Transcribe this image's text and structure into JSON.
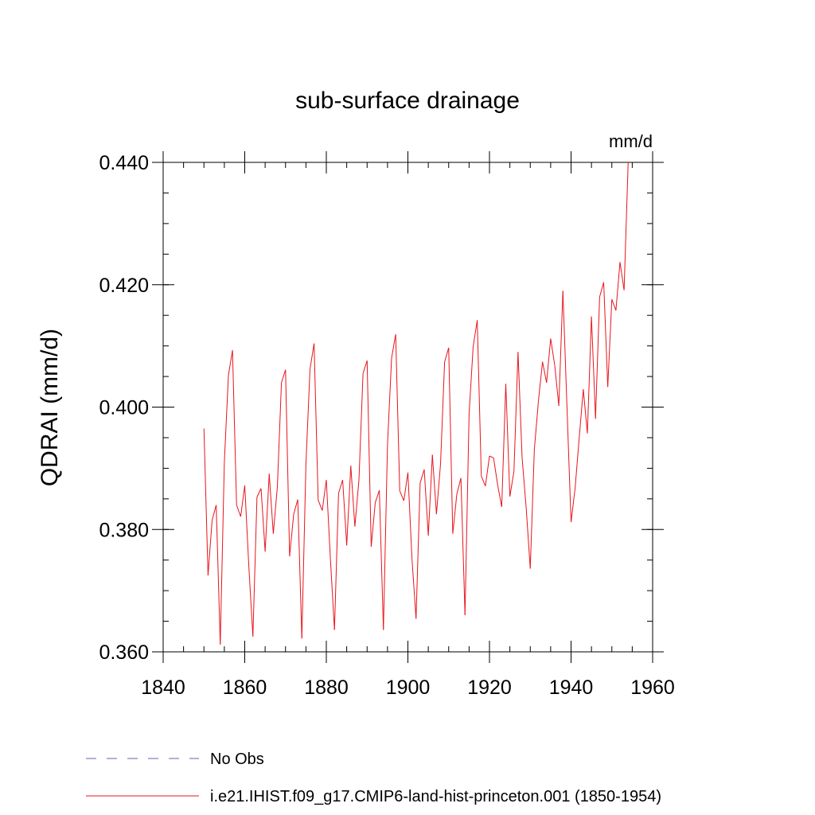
{
  "chart_data": {
    "type": "line",
    "title": "sub-surface drainage",
    "units_label": "mm/d",
    "ylabel": "QDRAI  (mm/d)",
    "xlabel": "",
    "xlim": [
      1840,
      1960
    ],
    "ylim": [
      0.36,
      0.44
    ],
    "x_ticks": [
      1840,
      1860,
      1880,
      1900,
      1920,
      1940,
      1960
    ],
    "x_tick_labels": [
      "1840",
      "1860",
      "1880",
      "1900",
      "1920",
      "1940",
      "1960"
    ],
    "y_ticks": [
      0.36,
      0.38,
      0.4,
      0.42,
      0.44
    ],
    "y_tick_labels": [
      "0.360",
      "0.380",
      "0.400",
      "0.420",
      "0.440"
    ],
    "y_minor_step": 0.005,
    "x_minor_step": 5,
    "grid": false,
    "legend_position": "bottom-left",
    "legend": [
      {
        "label": "No Obs",
        "color": "#6b5fb5",
        "dash": "dashed"
      },
      {
        "label": "i.e21.IHIST.f09_g17.CMIP6-land-hist-princeton.001 (1850-1954)",
        "color": "#e8141c",
        "dash": "solid"
      }
    ],
    "series": [
      {
        "name": "i.e21.IHIST.f09_g17.CMIP6-land-hist-princeton.001 (1850-1954)",
        "color": "#e8141c",
        "x": [
          1850,
          1851,
          1852,
          1853,
          1854,
          1855,
          1856,
          1857,
          1858,
          1859,
          1860,
          1861,
          1862,
          1863,
          1864,
          1865,
          1866,
          1867,
          1868,
          1869,
          1870,
          1871,
          1872,
          1873,
          1874,
          1875,
          1876,
          1877,
          1878,
          1879,
          1880,
          1881,
          1882,
          1883,
          1884,
          1885,
          1886,
          1887,
          1888,
          1889,
          1890,
          1891,
          1892,
          1893,
          1894,
          1895,
          1896,
          1897,
          1898,
          1899,
          1900,
          1901,
          1902,
          1903,
          1904,
          1905,
          1906,
          1907,
          1908,
          1909,
          1910,
          1911,
          1912,
          1913,
          1914,
          1915,
          1916,
          1917,
          1918,
          1919,
          1920,
          1921,
          1922,
          1923,
          1924,
          1925,
          1926,
          1927,
          1928,
          1929,
          1930,
          1931,
          1932,
          1933,
          1934,
          1935,
          1936,
          1937,
          1938,
          1939,
          1940,
          1941,
          1942,
          1943,
          1944,
          1945,
          1946,
          1947,
          1948,
          1949,
          1950,
          1951,
          1952,
          1953,
          1954
        ],
        "y": [
          0.3965,
          0.3725,
          0.3815,
          0.384,
          0.3612,
          0.391,
          0.4052,
          0.4093,
          0.384,
          0.3821,
          0.3872,
          0.374,
          0.3625,
          0.3853,
          0.3867,
          0.3764,
          0.3891,
          0.3793,
          0.387,
          0.404,
          0.4061,
          0.3756,
          0.3825,
          0.3849,
          0.3622,
          0.3907,
          0.4062,
          0.4104,
          0.3848,
          0.3831,
          0.3881,
          0.3752,
          0.3636,
          0.3859,
          0.3881,
          0.3774,
          0.3904,
          0.3805,
          0.3881,
          0.4055,
          0.4076,
          0.3772,
          0.3844,
          0.3864,
          0.3636,
          0.3939,
          0.408,
          0.4119,
          0.3863,
          0.3847,
          0.3893,
          0.3752,
          0.3654,
          0.3876,
          0.3898,
          0.379,
          0.3922,
          0.3825,
          0.3907,
          0.4074,
          0.4097,
          0.3793,
          0.3858,
          0.3884,
          0.366,
          0.3989,
          0.4099,
          0.4142,
          0.3887,
          0.3871,
          0.392,
          0.3917,
          0.3873,
          0.3837,
          0.4038,
          0.3854,
          0.3895,
          0.409,
          0.3917,
          0.3835,
          0.3736,
          0.3931,
          0.401,
          0.4074,
          0.404,
          0.4112,
          0.4068,
          0.4002,
          0.419,
          0.4,
          0.3812,
          0.3868,
          0.395,
          0.4029,
          0.3957,
          0.4148,
          0.3981,
          0.418,
          0.4204,
          0.4033,
          0.4176,
          0.4158,
          0.4237,
          0.4191,
          0.44
        ]
      }
    ]
  }
}
